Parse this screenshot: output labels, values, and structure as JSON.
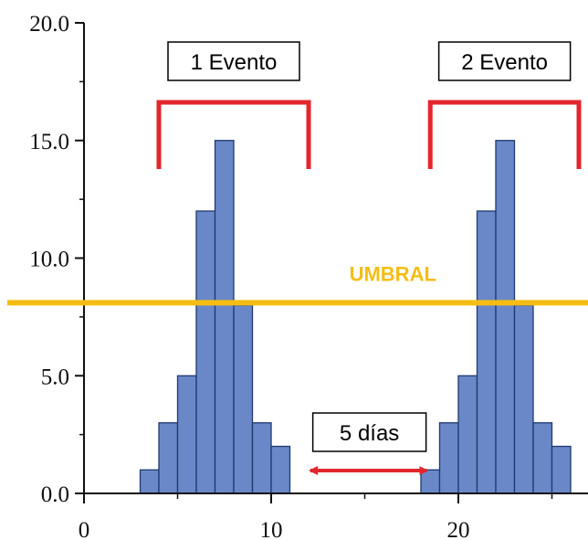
{
  "chart_data": {
    "type": "bar",
    "x_start": [
      3,
      4,
      5,
      6,
      7,
      8,
      9,
      10,
      11,
      18,
      19,
      20,
      21,
      22,
      23,
      24,
      25,
      26
    ],
    "values": [
      1,
      3,
      5,
      12,
      15,
      8,
      3,
      2,
      0,
      1,
      3,
      5,
      12,
      15,
      8,
      3,
      2,
      0
    ],
    "bin_width": 1,
    "xlim": [
      0,
      26.5
    ],
    "ylim": [
      0,
      20
    ],
    "x_ticks": [
      0,
      10,
      20
    ],
    "x_tick_labels": [
      "0",
      "10",
      "20"
    ],
    "y_ticks": [
      0,
      5,
      10,
      15,
      20
    ],
    "y_tick_labels": [
      "0.0",
      "5.0",
      "10.0",
      "15.0",
      "20.0"
    ],
    "threshold": {
      "value": 8.1,
      "label": "UMBRAL"
    },
    "events": [
      {
        "label": "1 Evento",
        "x_start": 4,
        "x_end": 12
      },
      {
        "label": "2 Evento",
        "x_start": 18.5,
        "x_end": 26.5
      }
    ],
    "gap": {
      "label": "5 días",
      "x_start": 12,
      "x_end": 18.5
    },
    "colors": {
      "bar_fill": "#6a88c8",
      "bar_stroke": "#1f3a70",
      "threshold": "#f5bd12",
      "bracket": "#e3262d",
      "axis": "#111111"
    }
  }
}
